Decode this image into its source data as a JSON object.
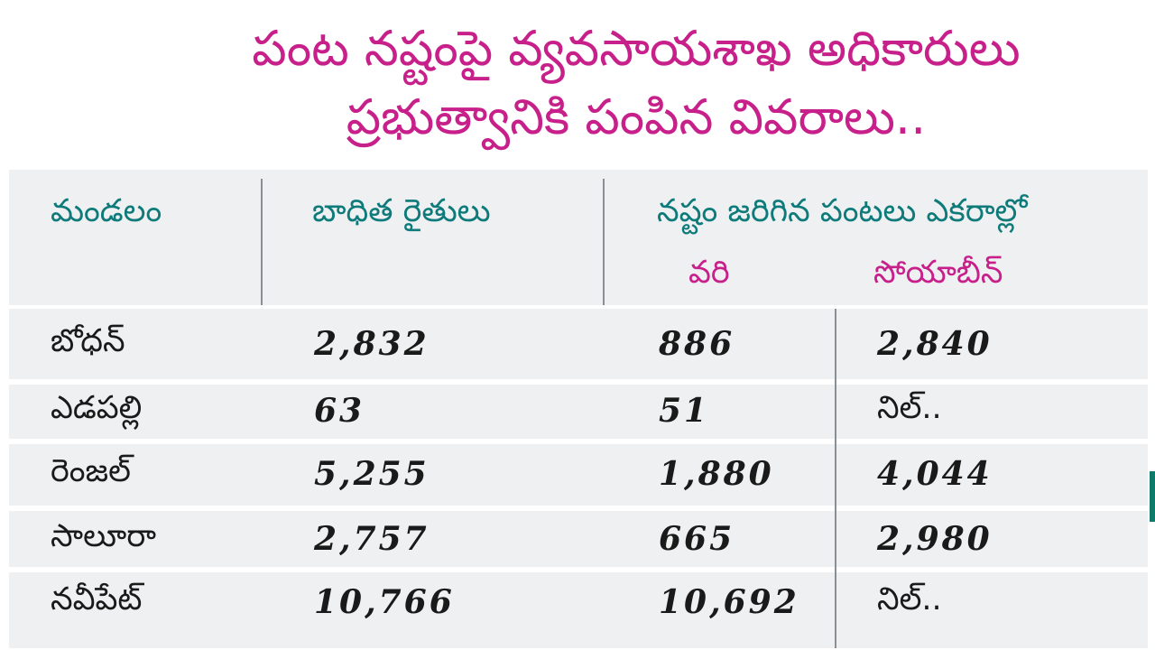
{
  "title": {
    "line1": "పంట నష్టంపై వ్యవసాయశాఖ అధికారులు",
    "line2": "ప్రభుత్వానికి పంపిన వివరాలు.."
  },
  "table": {
    "headers": {
      "mandal": "మండలం",
      "farmers": "బాధిత రైతులు",
      "loss": "నష్టం జరిగిన పంటలు ఎకరాల్లో",
      "paddy": "వరి",
      "soybean": "సోయాబీన్"
    },
    "rows": [
      {
        "mandal": "బోధన్",
        "farmers": "2,832",
        "paddy": "886",
        "soybean": "2,840"
      },
      {
        "mandal": "ఎడపల్లి",
        "farmers": "63",
        "paddy": "51",
        "soybean": "నిల్.."
      },
      {
        "mandal": "రెంజల్",
        "farmers": "5,255",
        "paddy": "1,880",
        "soybean": "4,044"
      },
      {
        "mandal": "సాలూరా",
        "farmers": "2,757",
        "paddy": "665",
        "soybean": "2,980"
      },
      {
        "mandal": "నవీపేట్",
        "farmers": "10,766",
        "paddy": "10,692",
        "soybean": "నిల్.."
      }
    ]
  },
  "colors": {
    "title": "#c8208a",
    "header": "#0e7a7a",
    "band": "#eef0f1",
    "line": "#8a8f93"
  }
}
